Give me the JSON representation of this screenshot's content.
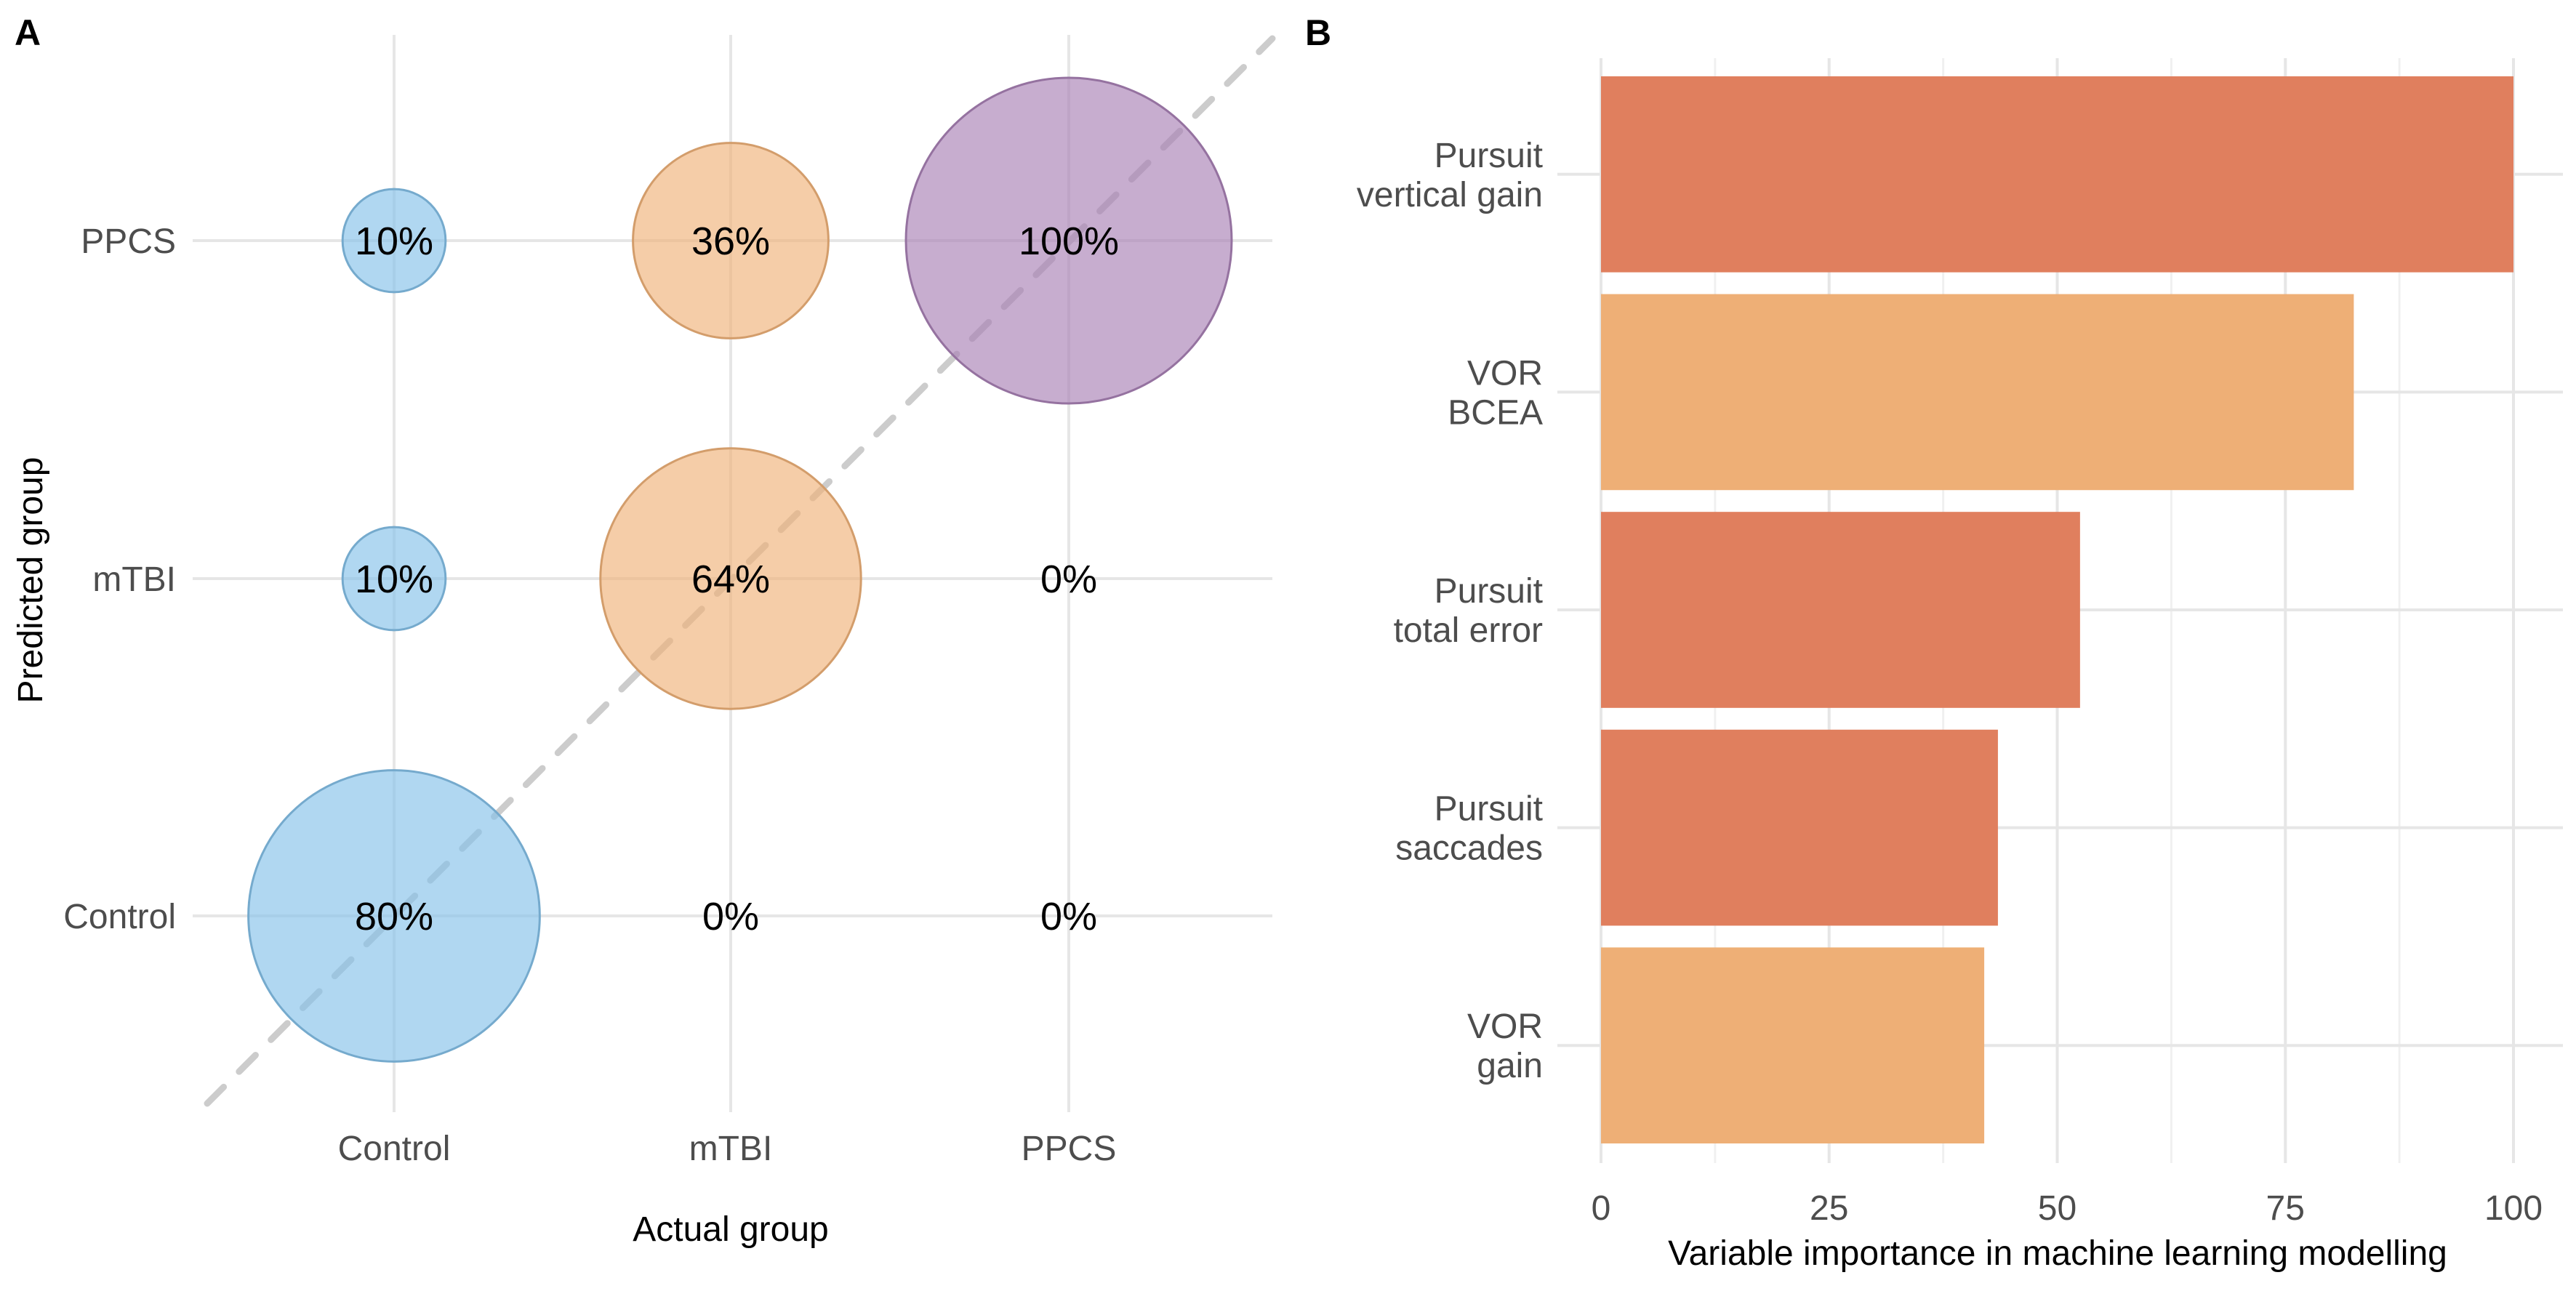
{
  "chart_data": [
    {
      "panel": "A",
      "type": "scatter",
      "subtype": "bubble-confusion-matrix",
      "xlabel": "Actual group",
      "ylabel": "Predicted group",
      "x_categories": [
        "Control",
        "mTBI",
        "PPCS"
      ],
      "y_categories": [
        "Control",
        "mTBI",
        "PPCS"
      ],
      "cells": [
        {
          "actual": "Control",
          "predicted": "PPCS",
          "value": 10,
          "label": "10%"
        },
        {
          "actual": "Control",
          "predicted": "mTBI",
          "value": 10,
          "label": "10%"
        },
        {
          "actual": "Control",
          "predicted": "Control",
          "value": 80,
          "label": "80%"
        },
        {
          "actual": "mTBI",
          "predicted": "PPCS",
          "value": 36,
          "label": "36%"
        },
        {
          "actual": "mTBI",
          "predicted": "mTBI",
          "value": 64,
          "label": "64%"
        },
        {
          "actual": "mTBI",
          "predicted": "Control",
          "value": 0,
          "label": "0%"
        },
        {
          "actual": "PPCS",
          "predicted": "PPCS",
          "value": 100,
          "label": "100%"
        },
        {
          "actual": "PPCS",
          "predicted": "mTBI",
          "value": 0,
          "label": "0%"
        },
        {
          "actual": "PPCS",
          "predicted": "Control",
          "value": 0,
          "label": "0%"
        }
      ],
      "colors": {
        "Control": "#85C1E9",
        "mTBI": "#F0B27A",
        "PPCS": "#A981B6"
      },
      "diagonal_reference_line": true,
      "grid": true
    },
    {
      "panel": "B",
      "type": "bar",
      "orientation": "horizontal",
      "xlabel": "Variable importance in machine learning modelling",
      "ylabel": "",
      "xlim": [
        0,
        100
      ],
      "xticks": [
        0,
        25,
        50,
        75,
        100
      ],
      "categories": [
        [
          "Pursuit",
          "vertical gain"
        ],
        [
          "VOR",
          "BCEA"
        ],
        [
          "Pursuit",
          "total error"
        ],
        [
          "Pursuit",
          "saccades"
        ],
        [
          "VOR",
          "gain"
        ]
      ],
      "values": [
        100,
        82.5,
        52.5,
        43.5,
        42
      ],
      "bar_colors": [
        "#E07F5E",
        "#EEAF76",
        "#E07F5E",
        "#E07F5E",
        "#EEAF76"
      ],
      "grid": true
    }
  ],
  "panels": {
    "a_letter": "A",
    "b_letter": "B"
  }
}
